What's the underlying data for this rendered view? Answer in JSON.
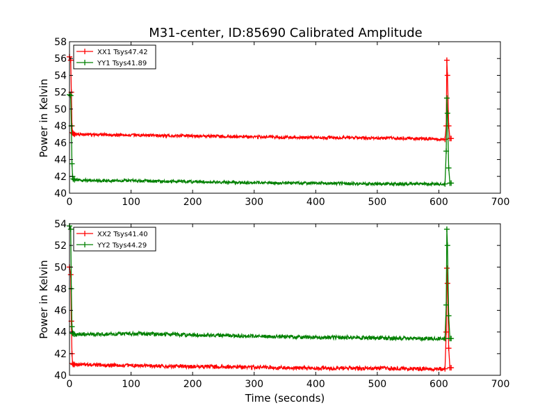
{
  "chart_data": {
    "type": "line",
    "title": "M31-center, ID:85690 Calibrated Amplitude",
    "xlabel": "Time (seconds)",
    "colors": {
      "XX": "#ff0000",
      "YY": "#008000"
    },
    "subplots": [
      {
        "ylabel": "Power in Kelvin",
        "xlim": [
          0,
          700
        ],
        "ylim": [
          40,
          58
        ],
        "xticks": [
          0,
          100,
          200,
          300,
          400,
          500,
          600,
          700
        ],
        "yticks": [
          40,
          42,
          44,
          46,
          48,
          50,
          52,
          54,
          56,
          58
        ],
        "legend_position": "upper-left",
        "series": [
          {
            "name": "XX1 Tsys47.42",
            "color": "#ff0000",
            "x": [
              0,
              2,
              3,
              4,
              5,
              6,
              8,
              50,
              100,
              150,
              200,
              250,
              300,
              350,
              400,
              450,
              500,
              550,
              600,
              610,
              612,
              613,
              614,
              616,
              618,
              620
            ],
            "y": [
              56.2,
              55.8,
              52.0,
              48.0,
              47.2,
              47.1,
              47.0,
              46.95,
              46.9,
              46.85,
              46.8,
              46.75,
              46.7,
              46.65,
              46.6,
              46.6,
              46.55,
              46.5,
              46.45,
              46.4,
              48.0,
              55.8,
              54.0,
              48.0,
              46.5,
              46.5
            ]
          },
          {
            "name": "YY1 Tsys41.89",
            "color": "#008000",
            "x": [
              0,
              2,
              3,
              4,
              5,
              6,
              8,
              50,
              100,
              150,
              200,
              250,
              300,
              350,
              400,
              450,
              500,
              550,
              600,
              610,
              612,
              613,
              614,
              616,
              618,
              620
            ],
            "y": [
              51.7,
              51.6,
              48.0,
              43.5,
              42.0,
              41.7,
              41.6,
              41.5,
              41.5,
              41.4,
              41.35,
              41.3,
              41.25,
              41.2,
              41.2,
              41.15,
              41.1,
              41.1,
              41.1,
              41.1,
              45.0,
              51.3,
              49.5,
              43.0,
              41.2,
              41.2
            ]
          }
        ]
      },
      {
        "ylabel": "Power in Kelvin",
        "xlim": [
          0,
          700
        ],
        "ylim": [
          40,
          54
        ],
        "xticks": [
          0,
          100,
          200,
          300,
          400,
          500,
          600,
          700
        ],
        "yticks": [
          40,
          42,
          44,
          46,
          48,
          50,
          52,
          54
        ],
        "legend_position": "upper-left",
        "series": [
          {
            "name": "XX2 Tsys41.40",
            "color": "#ff0000",
            "x": [
              0,
              2,
              3,
              4,
              5,
              6,
              8,
              50,
              100,
              150,
              200,
              250,
              300,
              350,
              400,
              450,
              500,
              550,
              600,
              610,
              612,
              613,
              614,
              616,
              618,
              620
            ],
            "y": [
              50.0,
              49.3,
              45.0,
              42.0,
              41.1,
              41.0,
              41.0,
              40.95,
              40.9,
              40.85,
              40.8,
              40.8,
              40.75,
              40.7,
              40.65,
              40.65,
              40.65,
              40.6,
              40.6,
              40.6,
              44.0,
              49.9,
              48.5,
              42.5,
              40.7,
              40.7
            ]
          },
          {
            "name": "YY2 Tsys44.29",
            "color": "#008000",
            "x": [
              0,
              2,
              3,
              4,
              5,
              6,
              8,
              50,
              100,
              150,
              200,
              250,
              300,
              350,
              400,
              450,
              500,
              550,
              600,
              610,
              612,
              613,
              614,
              616,
              618,
              620
            ],
            "y": [
              53.8,
              53.5,
              48.0,
              44.5,
              43.9,
              43.85,
              43.8,
              43.8,
              43.85,
              43.8,
              43.7,
              43.7,
              43.6,
              43.55,
              43.5,
              43.5,
              43.45,
              43.4,
              43.4,
              43.4,
              46.5,
              53.5,
              52.0,
              45.5,
              43.4,
              43.4
            ]
          }
        ]
      }
    ]
  }
}
